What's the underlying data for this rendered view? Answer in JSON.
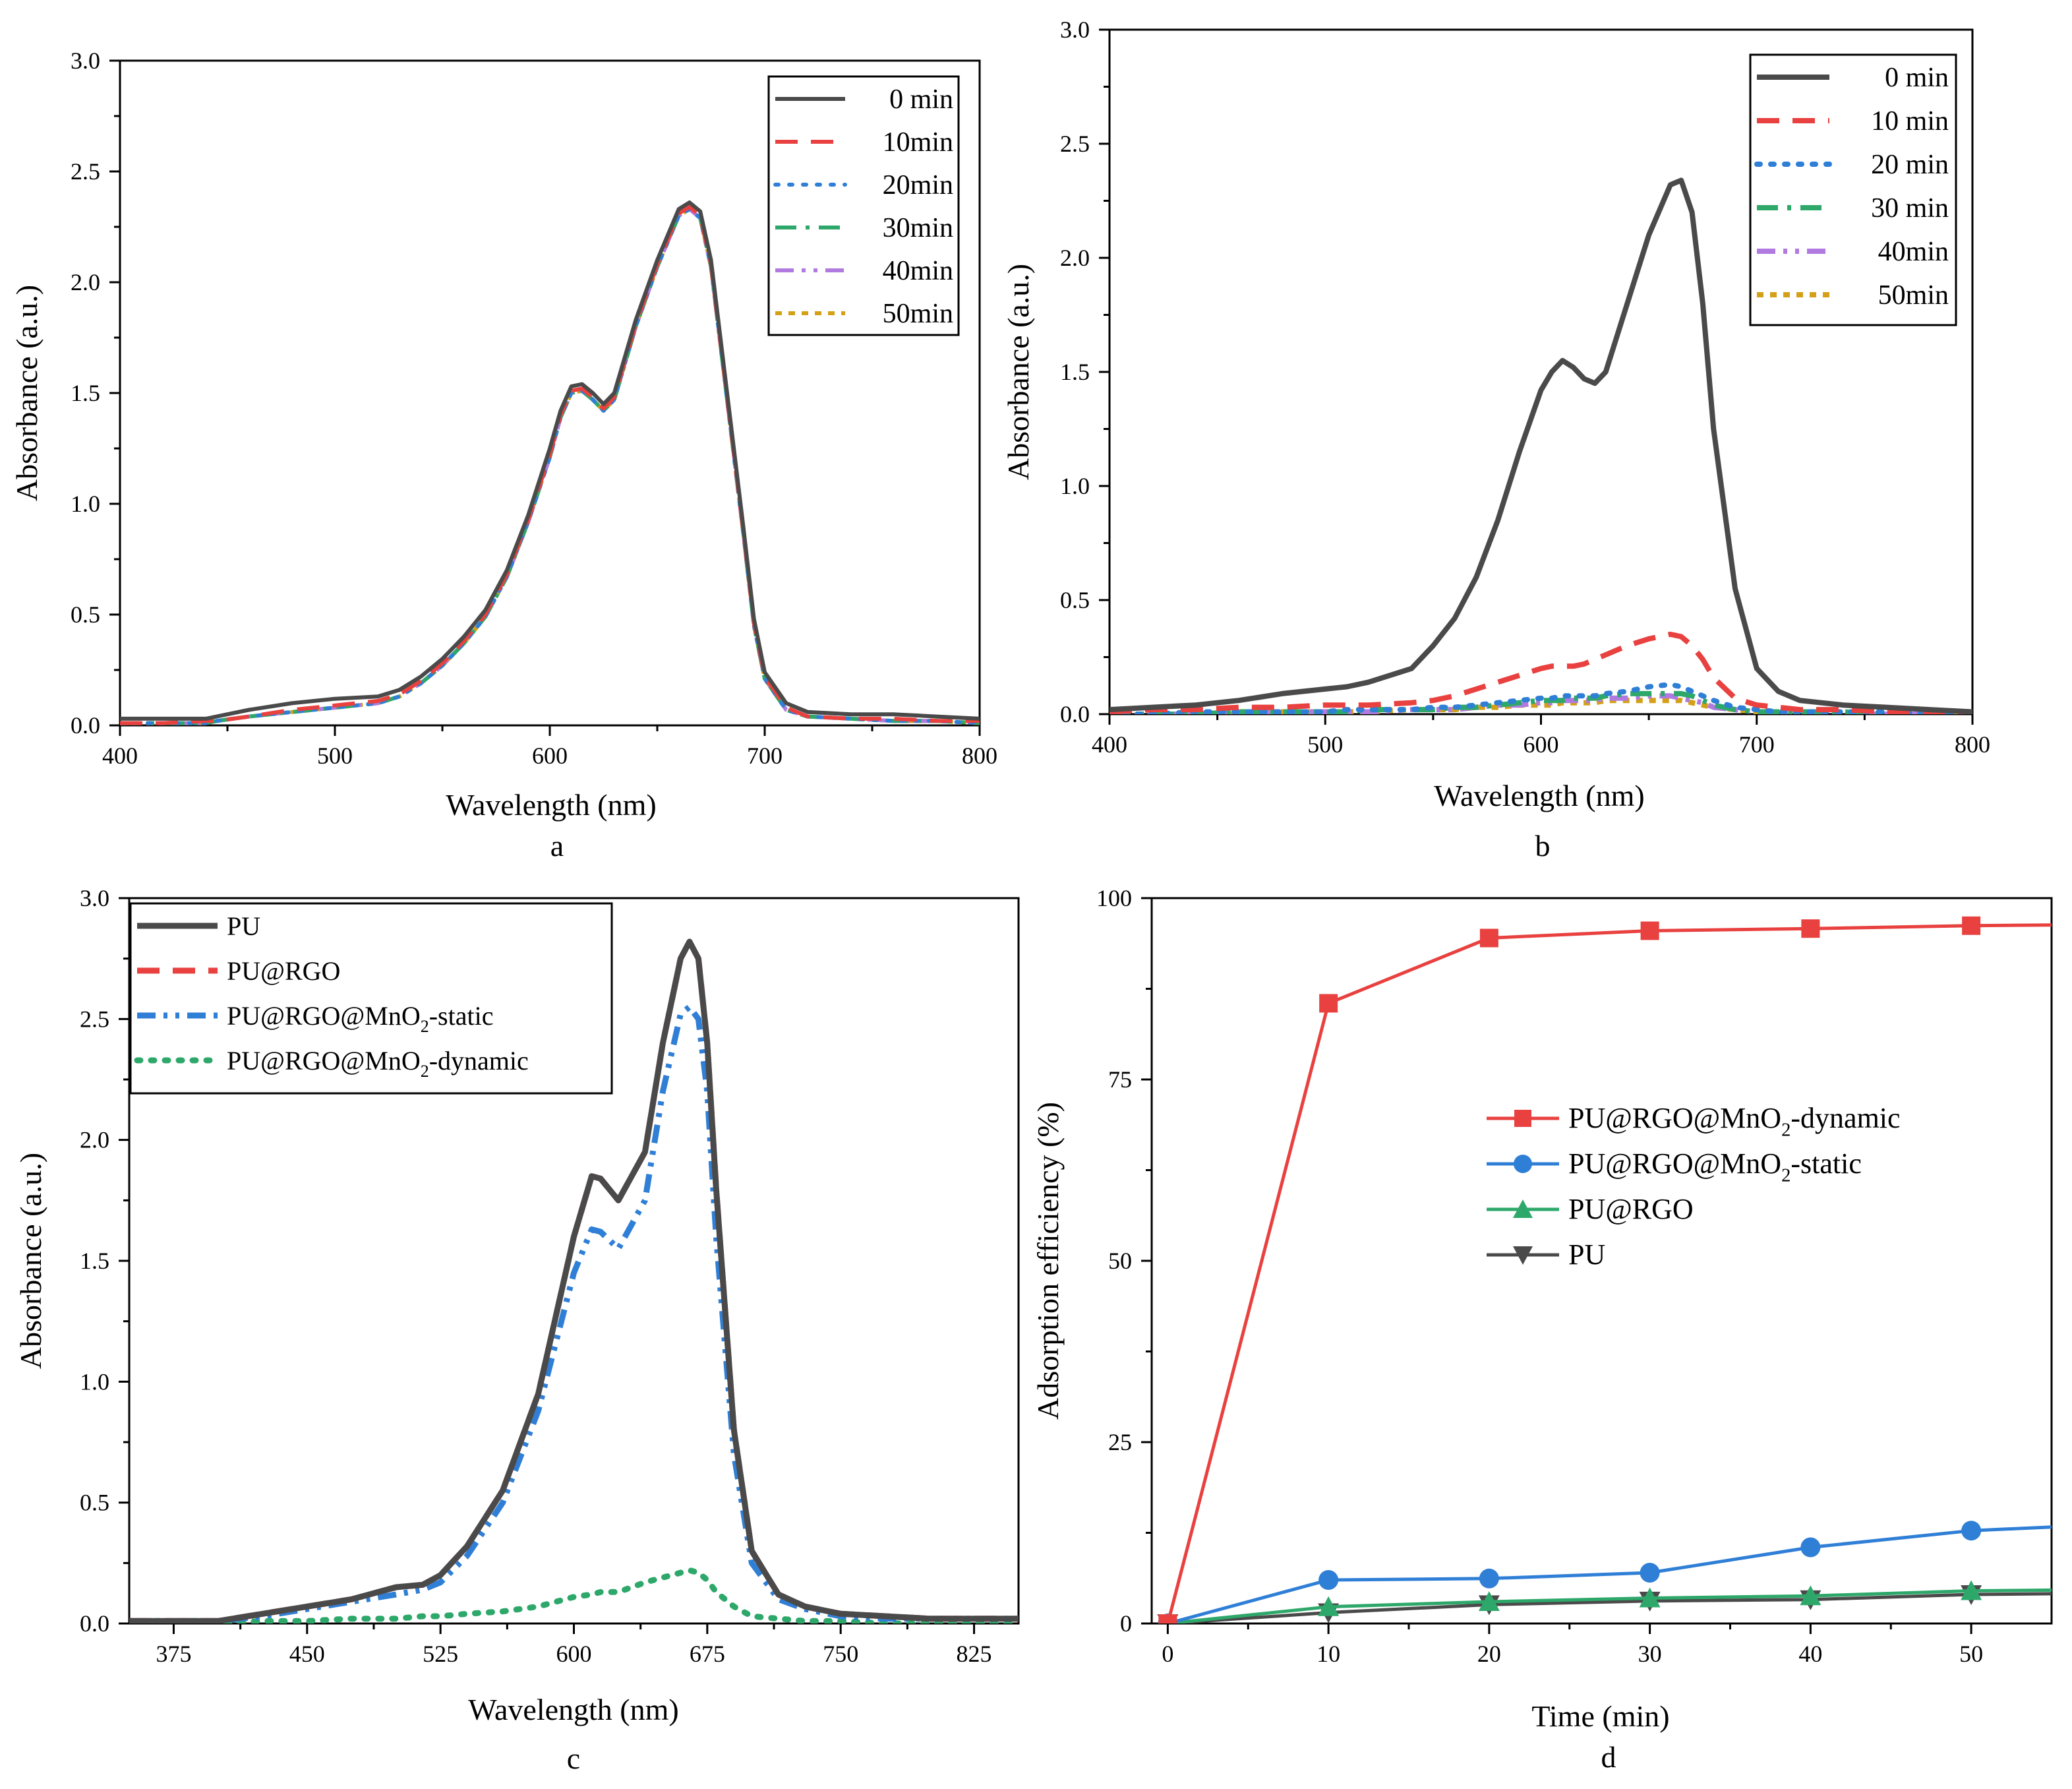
{
  "chart_data": [
    {
      "panel": "a",
      "type": "line",
      "caption": "a",
      "xlabel": "Wavelength (nm)",
      "ylabel": "Absorbance (a.u.)",
      "xlim": [
        400,
        800
      ],
      "ylim": [
        0,
        3.0
      ],
      "xticks": [
        400,
        500,
        600,
        700,
        800
      ],
      "yticks": [
        0.0,
        0.5,
        1.0,
        1.5,
        2.0,
        2.5,
        3.0
      ],
      "xtick_labels": [
        "400",
        "500",
        "600",
        "700",
        "800"
      ],
      "ytick_labels": [
        "0.0",
        "0.5",
        "1.0",
        "1.5",
        "2.0",
        "2.5",
        "3.0"
      ],
      "legend_position": "top-right",
      "x": [
        400,
        420,
        440,
        445,
        460,
        480,
        500,
        520,
        530,
        540,
        550,
        560,
        570,
        580,
        590,
        600,
        605,
        610,
        615,
        620,
        625,
        630,
        640,
        650,
        660,
        665,
        670,
        675,
        680,
        690,
        695,
        700,
        710,
        720,
        740,
        760,
        780,
        800
      ],
      "series": [
        {
          "name": "0 min",
          "color": "#4a4a4a",
          "dash": "solid",
          "values": [
            0.03,
            0.03,
            0.03,
            0.04,
            0.07,
            0.1,
            0.12,
            0.13,
            0.16,
            0.22,
            0.3,
            0.4,
            0.52,
            0.7,
            0.95,
            1.25,
            1.42,
            1.53,
            1.54,
            1.5,
            1.45,
            1.5,
            1.83,
            2.1,
            2.33,
            2.36,
            2.32,
            2.1,
            1.7,
            0.9,
            0.48,
            0.24,
            0.1,
            0.06,
            0.05,
            0.05,
            0.04,
            0.03
          ]
        },
        {
          "name": "10min",
          "color": "#e8413f",
          "dash": "dashed",
          "values": [
            0.01,
            0.01,
            0.02,
            0.02,
            0.04,
            0.07,
            0.09,
            0.11,
            0.14,
            0.2,
            0.28,
            0.38,
            0.5,
            0.68,
            0.93,
            1.22,
            1.4,
            1.51,
            1.52,
            1.48,
            1.43,
            1.48,
            1.81,
            2.08,
            2.31,
            2.34,
            2.3,
            2.08,
            1.68,
            0.88,
            0.46,
            0.22,
            0.08,
            0.04,
            0.03,
            0.03,
            0.02,
            0.02
          ]
        },
        {
          "name": "20min",
          "color": "#2f7fd6",
          "dash": "dotted",
          "values": [
            0.01,
            0.01,
            0.01,
            0.02,
            0.04,
            0.06,
            0.08,
            0.1,
            0.13,
            0.19,
            0.27,
            0.37,
            0.49,
            0.67,
            0.92,
            1.21,
            1.39,
            1.5,
            1.51,
            1.47,
            1.42,
            1.47,
            1.8,
            2.07,
            2.3,
            2.33,
            2.29,
            2.07,
            1.67,
            0.87,
            0.45,
            0.21,
            0.07,
            0.04,
            0.03,
            0.02,
            0.02,
            0.01
          ]
        },
        {
          "name": "30min",
          "color": "#2ea86a",
          "dash": "dashdot",
          "values": [
            0.01,
            0.01,
            0.01,
            0.02,
            0.04,
            0.06,
            0.08,
            0.1,
            0.13,
            0.19,
            0.27,
            0.37,
            0.49,
            0.67,
            0.92,
            1.21,
            1.39,
            1.5,
            1.51,
            1.47,
            1.42,
            1.47,
            1.8,
            2.07,
            2.3,
            2.33,
            2.29,
            2.07,
            1.67,
            0.87,
            0.45,
            0.21,
            0.07,
            0.04,
            0.03,
            0.02,
            0.02,
            0.01
          ]
        },
        {
          "name": "40min",
          "color": "#b07ae0",
          "dash": "dashdotdot",
          "values": [
            0.01,
            0.01,
            0.01,
            0.02,
            0.04,
            0.06,
            0.08,
            0.1,
            0.13,
            0.19,
            0.27,
            0.37,
            0.49,
            0.67,
            0.92,
            1.21,
            1.39,
            1.5,
            1.51,
            1.47,
            1.42,
            1.47,
            1.8,
            2.07,
            2.3,
            2.33,
            2.29,
            2.07,
            1.67,
            0.87,
            0.45,
            0.21,
            0.07,
            0.04,
            0.03,
            0.02,
            0.02,
            0.01
          ]
        },
        {
          "name": "50min",
          "color": "#d4a017",
          "dash": "shortdot",
          "values": [
            0.01,
            0.01,
            0.01,
            0.02,
            0.04,
            0.06,
            0.08,
            0.1,
            0.13,
            0.19,
            0.27,
            0.37,
            0.49,
            0.67,
            0.92,
            1.21,
            1.39,
            1.5,
            1.51,
            1.47,
            1.42,
            1.47,
            1.8,
            2.07,
            2.3,
            2.33,
            2.29,
            2.07,
            1.67,
            0.87,
            0.45,
            0.21,
            0.07,
            0.04,
            0.03,
            0.02,
            0.02,
            0.01
          ]
        }
      ]
    },
    {
      "panel": "b",
      "type": "line",
      "caption": "b",
      "xlabel": "Wavelength (nm)",
      "ylabel": "Absorbance (a.u.)",
      "xlim": [
        400,
        800
      ],
      "ylim": [
        0,
        3.0
      ],
      "xticks": [
        400,
        500,
        600,
        700,
        800
      ],
      "yticks": [
        0.0,
        0.5,
        1.0,
        1.5,
        2.0,
        2.5,
        3.0
      ],
      "xtick_labels": [
        "400",
        "500",
        "600",
        "700",
        "800"
      ],
      "ytick_labels": [
        "0.0",
        "0.5",
        "1.0",
        "1.5",
        "2.0",
        "2.5",
        "3.0"
      ],
      "legend_position": "top-right",
      "x": [
        400,
        420,
        440,
        460,
        480,
        500,
        510,
        520,
        540,
        550,
        560,
        570,
        580,
        590,
        600,
        605,
        610,
        615,
        620,
        625,
        630,
        640,
        650,
        660,
        665,
        670,
        675,
        680,
        690,
        700,
        710,
        720,
        740,
        760,
        780,
        800
      ],
      "series": [
        {
          "name": "0 min",
          "color": "#4a4a4a",
          "dash": "solid",
          "values": [
            0.02,
            0.03,
            0.04,
            0.06,
            0.09,
            0.11,
            0.12,
            0.14,
            0.2,
            0.3,
            0.42,
            0.6,
            0.85,
            1.15,
            1.42,
            1.5,
            1.55,
            1.52,
            1.47,
            1.45,
            1.5,
            1.8,
            2.1,
            2.32,
            2.34,
            2.2,
            1.8,
            1.25,
            0.55,
            0.2,
            0.1,
            0.06,
            0.04,
            0.03,
            0.02,
            0.01
          ]
        },
        {
          "name": "10 min",
          "color": "#e8413f",
          "dash": "dashed",
          "values": [
            0.01,
            0.02,
            0.02,
            0.03,
            0.03,
            0.04,
            0.04,
            0.04,
            0.05,
            0.06,
            0.08,
            0.11,
            0.14,
            0.17,
            0.2,
            0.21,
            0.21,
            0.21,
            0.22,
            0.24,
            0.26,
            0.3,
            0.33,
            0.35,
            0.34,
            0.3,
            0.24,
            0.16,
            0.07,
            0.04,
            0.03,
            0.02,
            0.02,
            0.01,
            0.01,
            0.01
          ]
        },
        {
          "name": "20 min",
          "color": "#2f7fd6",
          "dash": "dotted",
          "values": [
            0.0,
            0.0,
            0.01,
            0.01,
            0.01,
            0.01,
            0.02,
            0.02,
            0.02,
            0.03,
            0.03,
            0.04,
            0.05,
            0.06,
            0.07,
            0.07,
            0.08,
            0.08,
            0.08,
            0.08,
            0.09,
            0.1,
            0.12,
            0.13,
            0.12,
            0.1,
            0.08,
            0.06,
            0.03,
            0.02,
            0.01,
            0.01,
            0.01,
            0.01,
            0.0,
            0.0
          ]
        },
        {
          "name": "30 min",
          "color": "#2ea86a",
          "dash": "dashdot",
          "values": [
            0.0,
            0.0,
            0.0,
            0.01,
            0.01,
            0.01,
            0.01,
            0.02,
            0.02,
            0.02,
            0.03,
            0.03,
            0.04,
            0.05,
            0.06,
            0.06,
            0.06,
            0.07,
            0.07,
            0.07,
            0.08,
            0.09,
            0.09,
            0.09,
            0.09,
            0.08,
            0.06,
            0.04,
            0.02,
            0.01,
            0.01,
            0.01,
            0.01,
            0.0,
            0.0,
            0.0
          ]
        },
        {
          "name": "40min",
          "color": "#b07ae0",
          "dash": "dashdotdot",
          "values": [
            0.0,
            0.0,
            0.0,
            0.01,
            0.01,
            0.01,
            0.01,
            0.01,
            0.02,
            0.02,
            0.02,
            0.03,
            0.04,
            0.04,
            0.05,
            0.05,
            0.06,
            0.06,
            0.06,
            0.06,
            0.07,
            0.07,
            0.08,
            0.08,
            0.07,
            0.06,
            0.05,
            0.03,
            0.02,
            0.01,
            0.01,
            0.0,
            0.0,
            0.0,
            0.0,
            0.0
          ]
        },
        {
          "name": "50min",
          "color": "#d4a017",
          "dash": "shortdot",
          "values": [
            0.0,
            0.0,
            0.0,
            0.0,
            0.01,
            0.01,
            0.01,
            0.01,
            0.02,
            0.02,
            0.02,
            0.03,
            0.03,
            0.04,
            0.04,
            0.04,
            0.05,
            0.05,
            0.05,
            0.05,
            0.06,
            0.06,
            0.06,
            0.06,
            0.06,
            0.05,
            0.04,
            0.03,
            0.02,
            0.01,
            0.01,
            0.0,
            0.0,
            0.0,
            0.0,
            0.0
          ]
        }
      ]
    },
    {
      "panel": "c",
      "type": "line",
      "caption": "c",
      "xlabel": "Wavelength (nm)",
      "ylabel": "Absorbance (a.u.)",
      "xlim": [
        350,
        850
      ],
      "ylim": [
        0,
        3.0
      ],
      "xticks": [
        375,
        450,
        525,
        600,
        675,
        750,
        825
      ],
      "yticks": [
        0.0,
        0.5,
        1.0,
        1.5,
        2.0,
        2.5,
        3.0
      ],
      "xtick_labels": [
        "375",
        "450",
        "525",
        "600",
        "675",
        "750",
        "825"
      ],
      "ytick_labels": [
        "0.0",
        "0.5",
        "1.0",
        "1.5",
        "2.0",
        "2.5",
        "3.0"
      ],
      "legend_position": "top-left",
      "x": [
        350,
        375,
        400,
        425,
        450,
        475,
        500,
        515,
        525,
        540,
        560,
        580,
        600,
        610,
        615,
        625,
        640,
        650,
        660,
        665,
        670,
        675,
        680,
        690,
        700,
        715,
        730,
        750,
        775,
        800,
        825,
        850
      ],
      "series": [
        {
          "name": "PU",
          "name_sub": "",
          "name_suffix": "",
          "color": "#4a4a4a",
          "dash": "solid",
          "width": 9,
          "values": [
            0.01,
            0.01,
            0.01,
            0.04,
            0.07,
            0.1,
            0.15,
            0.16,
            0.2,
            0.32,
            0.55,
            0.95,
            1.6,
            1.85,
            1.84,
            1.75,
            1.95,
            2.4,
            2.75,
            2.82,
            2.75,
            2.4,
            1.8,
            0.8,
            0.3,
            0.12,
            0.07,
            0.04,
            0.03,
            0.02,
            0.02,
            0.02
          ]
        },
        {
          "name": "PU@RGO",
          "name_sub": "",
          "name_suffix": "",
          "color": "#e8413f",
          "dash": "dashed",
          "width": 9,
          "values": [
            0.01,
            0.01,
            0.01,
            0.04,
            0.07,
            0.1,
            0.15,
            0.16,
            0.2,
            0.32,
            0.55,
            0.95,
            1.6,
            1.85,
            1.84,
            1.75,
            1.95,
            2.4,
            2.75,
            2.82,
            2.75,
            2.4,
            1.8,
            0.8,
            0.3,
            0.12,
            0.07,
            0.04,
            0.03,
            0.02,
            0.02,
            0.02
          ]
        },
        {
          "name": "PU@RGO@MnO",
          "name_sub": "2",
          "name_suffix": "-static",
          "color": "#2f7fd6",
          "dash": "dashdotdot",
          "width": 9,
          "values": [
            0.01,
            0.01,
            0.01,
            0.03,
            0.06,
            0.09,
            0.12,
            0.14,
            0.17,
            0.28,
            0.5,
            0.88,
            1.45,
            1.63,
            1.62,
            1.55,
            1.75,
            2.2,
            2.52,
            2.55,
            2.5,
            2.2,
            1.6,
            0.7,
            0.25,
            0.1,
            0.06,
            0.03,
            0.02,
            0.02,
            0.02,
            0.02
          ]
        },
        {
          "name": "PU@RGO@MnO",
          "name_sub": "2",
          "name_suffix": "-dynamic",
          "color": "#2ea86a",
          "dash": "dotted",
          "width": 9,
          "values": [
            0.0,
            0.0,
            0.0,
            0.01,
            0.01,
            0.02,
            0.02,
            0.03,
            0.03,
            0.04,
            0.05,
            0.07,
            0.11,
            0.12,
            0.13,
            0.13,
            0.17,
            0.19,
            0.21,
            0.22,
            0.21,
            0.18,
            0.13,
            0.07,
            0.03,
            0.02,
            0.01,
            0.01,
            0.0,
            0.0,
            0.0,
            0.0
          ]
        }
      ]
    },
    {
      "panel": "d",
      "type": "line",
      "caption": "d",
      "xlabel": "Time (min)",
      "ylabel": "Adsorption efficiency (%)",
      "xlim": [
        -1,
        55
      ],
      "ylim": [
        0,
        100
      ],
      "xticks": [
        0,
        10,
        20,
        30,
        40,
        50
      ],
      "yticks": [
        0,
        25,
        50,
        75,
        100
      ],
      "xtick_labels": [
        "0",
        "10",
        "20",
        "30",
        "40",
        "50"
      ],
      "ytick_labels": [
        "0",
        "25",
        "50",
        "75",
        "100"
      ],
      "legend_position": "center-right",
      "x": [
        0,
        10,
        20,
        30,
        40,
        50,
        55
      ],
      "marker_points": 6,
      "series": [
        {
          "name": "PU@RGO@MnO",
          "name_sub": "2",
          "name_suffix": "-dynamic",
          "color": "#e8413f",
          "marker": "square",
          "values": [
            0,
            85.5,
            94.5,
            95.5,
            95.8,
            96.2,
            96.3
          ]
        },
        {
          "name": "PU@RGO@MnO",
          "name_sub": "2",
          "name_suffix": "-static",
          "color": "#2f7fd6",
          "marker": "circle",
          "values": [
            0,
            6.0,
            6.2,
            7.0,
            10.5,
            12.8,
            13.3
          ]
        },
        {
          "name": "PU@RGO",
          "name_sub": "",
          "name_suffix": "",
          "color": "#2ea86a",
          "marker": "triangle-up",
          "values": [
            0,
            2.3,
            3.0,
            3.5,
            3.8,
            4.5,
            4.6
          ]
        },
        {
          "name": "PU",
          "name_sub": "",
          "name_suffix": "",
          "color": "#4a4a4a",
          "marker": "triangle-down",
          "values": [
            0,
            1.5,
            2.6,
            3.1,
            3.3,
            4.0,
            4.1
          ]
        }
      ]
    }
  ]
}
